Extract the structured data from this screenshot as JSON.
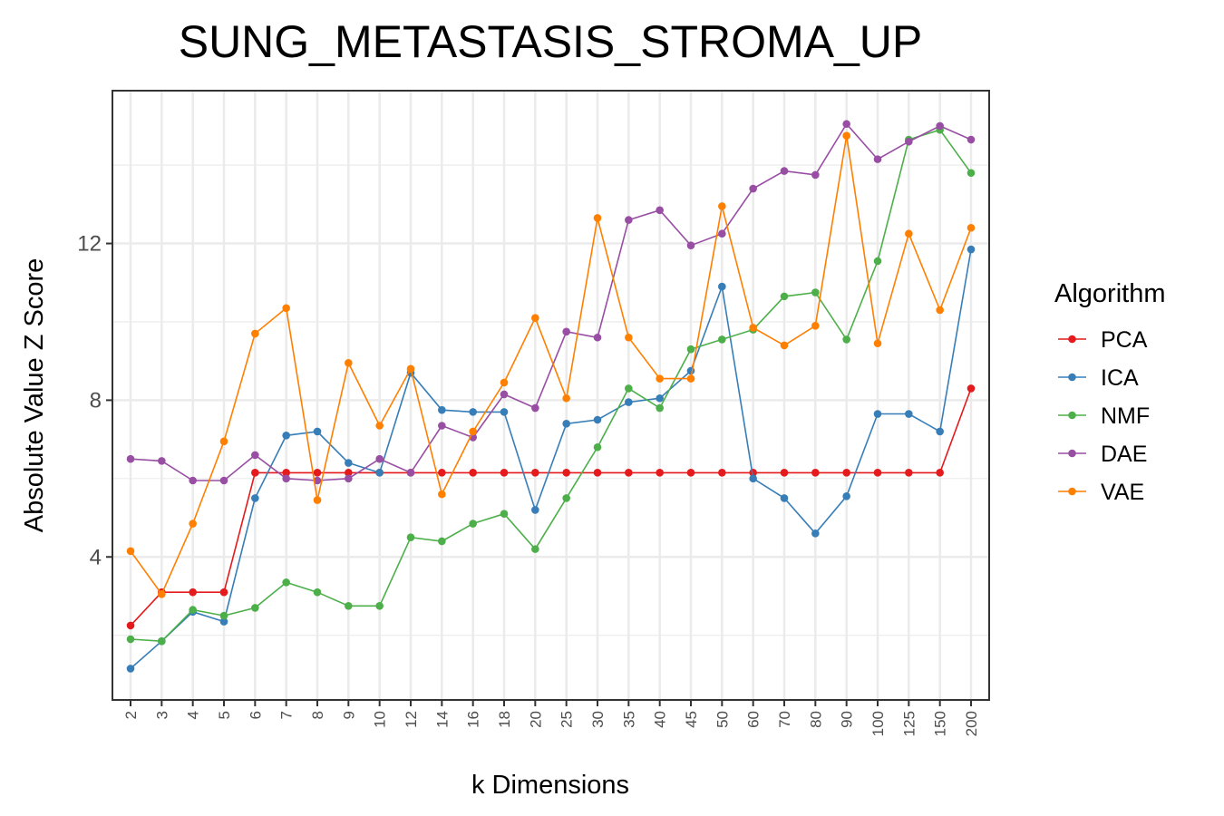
{
  "chart_data": {
    "type": "line",
    "title": "SUNG_METASTASIS_STROMA_UP",
    "xlabel": "k Dimensions",
    "ylabel": "Absolute Value Z Score",
    "categories": [
      "2",
      "3",
      "4",
      "5",
      "6",
      "7",
      "8",
      "9",
      "10",
      "12",
      "14",
      "16",
      "18",
      "20",
      "25",
      "30",
      "35",
      "40",
      "45",
      "50",
      "60",
      "70",
      "80",
      "90",
      "100",
      "125",
      "150",
      "200"
    ],
    "yticks": [
      4,
      8,
      12
    ],
    "ylim": [
      0.35,
      15.9
    ],
    "grid": true,
    "legend_title": "Algorithm",
    "legend_position": "right",
    "series": [
      {
        "name": "PCA",
        "color": "#e41a1c",
        "values": [
          2.25,
          3.1,
          3.1,
          3.1,
          6.15,
          6.15,
          6.15,
          6.15,
          6.15,
          6.15,
          6.15,
          6.15,
          6.15,
          6.15,
          6.15,
          6.15,
          6.15,
          6.15,
          6.15,
          6.15,
          6.15,
          6.15,
          6.15,
          6.15,
          6.15,
          6.15,
          6.15,
          8.3
        ]
      },
      {
        "name": "ICA",
        "color": "#377eb8",
        "values": [
          1.15,
          1.85,
          2.6,
          2.35,
          5.5,
          7.1,
          7.2,
          6.4,
          6.15,
          8.7,
          7.75,
          7.7,
          7.7,
          5.2,
          7.4,
          7.5,
          7.95,
          8.05,
          8.75,
          10.9,
          6.0,
          5.5,
          4.6,
          5.55,
          7.65,
          7.65,
          7.2,
          11.85
        ]
      },
      {
        "name": "NMF",
        "color": "#4daf4a",
        "values": [
          1.9,
          1.85,
          2.65,
          2.5,
          2.7,
          3.35,
          3.1,
          2.75,
          2.75,
          4.5,
          4.4,
          4.85,
          5.1,
          4.2,
          5.5,
          6.8,
          8.3,
          7.8,
          9.3,
          9.55,
          9.8,
          10.65,
          10.75,
          9.55,
          11.55,
          14.65,
          14.9,
          13.8
        ]
      },
      {
        "name": "DAE",
        "color": "#984ea3",
        "values": [
          6.5,
          6.45,
          5.95,
          5.95,
          6.6,
          6.0,
          5.95,
          6.0,
          6.5,
          6.15,
          7.35,
          7.05,
          8.15,
          7.8,
          9.75,
          9.6,
          12.6,
          12.85,
          11.95,
          12.25,
          13.4,
          13.85,
          13.75,
          15.05,
          14.15,
          14.6,
          15.0,
          14.65
        ]
      },
      {
        "name": "VAE",
        "color": "#ff7f00",
        "values": [
          4.15,
          3.05,
          4.85,
          6.95,
          9.7,
          10.35,
          5.45,
          8.95,
          7.35,
          8.8,
          5.6,
          7.2,
          8.45,
          10.1,
          8.05,
          12.65,
          9.6,
          8.55,
          8.55,
          12.95,
          9.85,
          9.4,
          9.9,
          14.75,
          9.45,
          12.25,
          10.3,
          12.4
        ]
      }
    ]
  }
}
